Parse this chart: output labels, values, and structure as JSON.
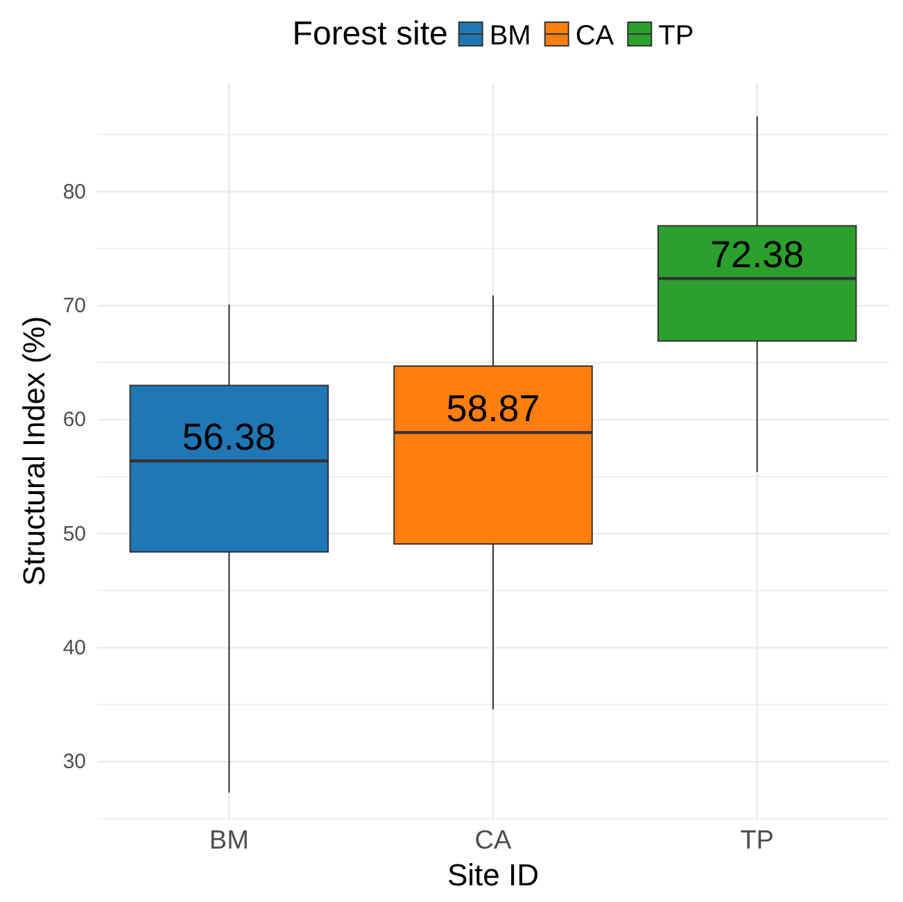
{
  "chart_data": {
    "type": "box",
    "xlabel": "Site ID",
    "ylabel": "Structural Index (%)",
    "legend_title": "Forest site",
    "categories": [
      "BM",
      "CA",
      "TP"
    ],
    "series": [
      {
        "name": "BM",
        "color": "#1f77b4",
        "boxes": [
          {
            "low": 27.3,
            "q1": 48.4,
            "median": 56.38,
            "q3": 63.0,
            "high": 70.1
          },
          null,
          null
        ],
        "value_labels": [
          "56.38",
          null,
          null
        ]
      },
      {
        "name": "CA",
        "color": "#ff7f0e",
        "boxes": [
          null,
          {
            "low": 34.6,
            "q1": 49.1,
            "median": 58.87,
            "q3": 64.7,
            "high": 70.9
          },
          null
        ],
        "value_labels": [
          null,
          "58.87",
          null
        ]
      },
      {
        "name": "TP",
        "color": "#2ca02c",
        "boxes": [
          null,
          null,
          {
            "low": 55.4,
            "q1": 66.9,
            "median": 72.38,
            "q3": 77.0,
            "high": 86.6
          }
        ],
        "value_labels": [
          null,
          null,
          "72.38"
        ]
      }
    ],
    "ylim": [
      25,
      89.5
    ],
    "yticks": [
      {
        "value": 25,
        "label": null
      },
      30,
      {
        "value": 35,
        "label": null
      },
      40,
      {
        "value": 45,
        "label": null
      },
      50,
      {
        "value": 55,
        "label": null
      },
      60,
      {
        "value": 65,
        "label": null
      },
      70,
      {
        "value": 75,
        "label": null
      },
      80,
      {
        "value": 85,
        "label": null
      }
    ],
    "grid": true,
    "legend": "top"
  }
}
